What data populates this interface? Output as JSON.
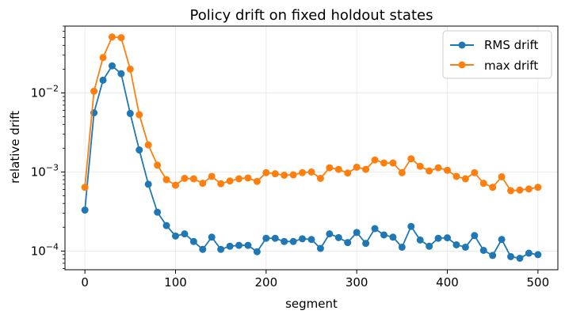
{
  "chart_data": {
    "type": "line",
    "title": "Policy drift on fixed holdout states",
    "xlabel": "segment",
    "ylabel": "relative drift",
    "y_scale": "log",
    "xlim": [
      -22,
      522
    ],
    "ylim": [
      5.8e-05,
      0.07
    ],
    "x_ticks": [
      0,
      100,
      200,
      300,
      400,
      500
    ],
    "y_ticks": [
      {
        "value": 0.0001,
        "base": "10",
        "exp": "−4"
      },
      {
        "value": 0.001,
        "base": "10",
        "exp": "−3"
      },
      {
        "value": 0.01,
        "base": "10",
        "exp": "−2"
      }
    ],
    "grid": true,
    "legend_position": "top-right",
    "x": [
      0,
      10,
      20,
      30,
      40,
      50,
      60,
      70,
      80,
      90,
      100,
      110,
      120,
      130,
      140,
      150,
      160,
      170,
      180,
      190,
      200,
      210,
      220,
      230,
      240,
      250,
      260,
      270,
      280,
      290,
      300,
      310,
      320,
      330,
      340,
      350,
      360,
      370,
      380,
      390,
      400,
      410,
      420,
      430,
      440,
      450,
      460,
      470,
      480,
      490,
      500
    ],
    "series": [
      {
        "name": "RMS drift",
        "color": "#1f77b4",
        "values": [
          0.00033,
          0.0056,
          0.0145,
          0.022,
          0.0175,
          0.0055,
          0.0019,
          0.0007,
          0.00031,
          0.00021,
          0.000155,
          0.000165,
          0.000132,
          0.000105,
          0.00015,
          0.000105,
          0.000115,
          0.000118,
          0.000118,
          9.8e-05,
          0.000145,
          0.000145,
          0.000132,
          0.000132,
          0.000143,
          0.00014,
          0.000108,
          0.000165,
          0.000148,
          0.000128,
          0.000172,
          0.000125,
          0.000192,
          0.00016,
          0.00015,
          0.000112,
          0.000205,
          0.000138,
          0.000115,
          0.000145,
          0.000147,
          0.00012,
          0.000112,
          0.000157,
          0.000102,
          8.8e-05,
          0.00014,
          8.5e-05,
          8.1e-05,
          9.4e-05,
          9e-05
        ]
      },
      {
        "name": "max drift",
        "color": "#ff7f0e",
        "values": [
          0.00064,
          0.0105,
          0.028,
          0.051,
          0.05,
          0.02,
          0.0053,
          0.0022,
          0.00122,
          0.0008,
          0.00068,
          0.00083,
          0.00082,
          0.00072,
          0.00088,
          0.00071,
          0.00077,
          0.00082,
          0.00084,
          0.00076,
          0.00098,
          0.00095,
          0.00091,
          0.00092,
          0.00098,
          0.001,
          0.00083,
          0.00113,
          0.00108,
          0.00097,
          0.00115,
          0.00108,
          0.00142,
          0.0013,
          0.0013,
          0.00098,
          0.00147,
          0.00118,
          0.00103,
          0.00113,
          0.00105,
          0.00088,
          0.00082,
          0.00098,
          0.00072,
          0.00064,
          0.00087,
          0.00058,
          0.00059,
          0.00061,
          0.00064
        ]
      }
    ]
  }
}
